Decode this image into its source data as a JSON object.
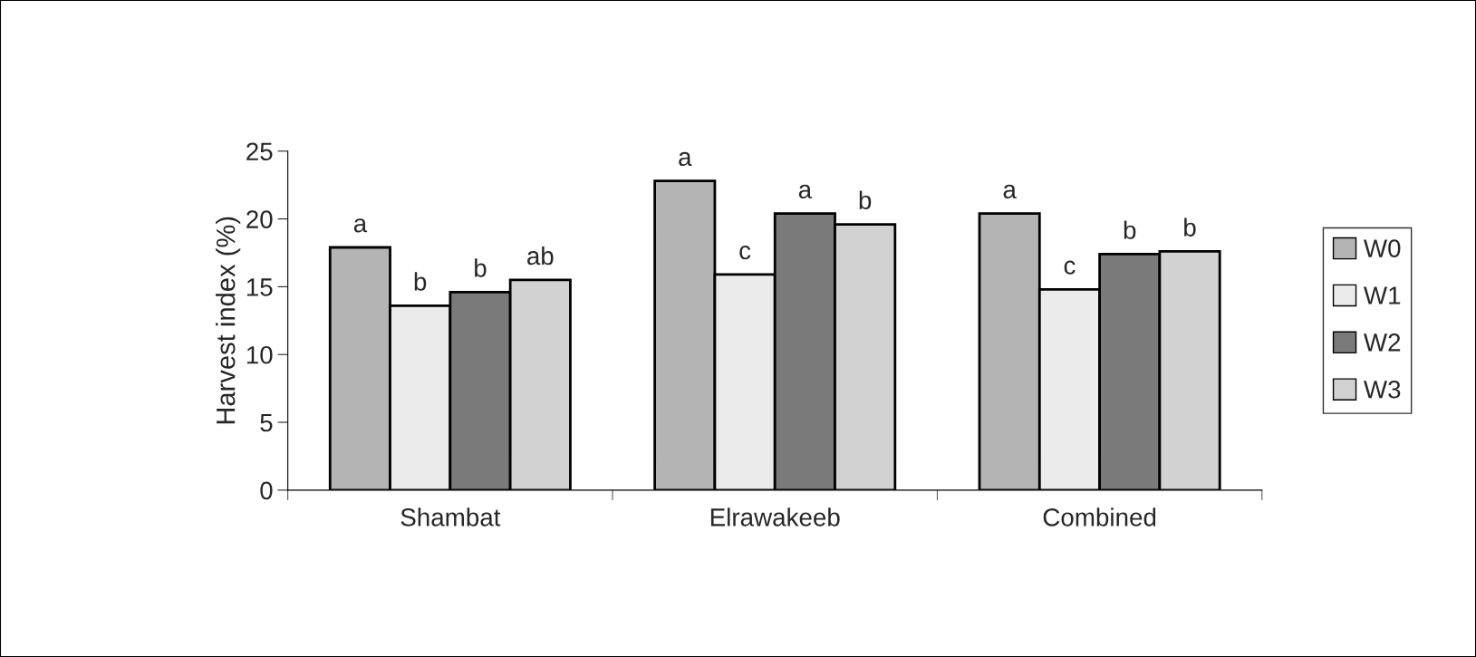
{
  "chart_data": {
    "type": "bar",
    "ylabel": "Harvest index (%)",
    "categories": [
      "Shambat",
      "Elrawakeeb",
      "Combined"
    ],
    "series": [
      {
        "name": "W0",
        "color": "#b4b4b4",
        "values": [
          17.9,
          22.8,
          20.4
        ],
        "value_labels": [
          "a",
          "a",
          "a"
        ]
      },
      {
        "name": "W1",
        "color": "#ebebeb",
        "values": [
          13.6,
          15.9,
          14.8
        ],
        "value_labels": [
          "b",
          "c",
          "c"
        ]
      },
      {
        "name": "W2",
        "color": "#7a7a7a",
        "values": [
          14.6,
          20.4,
          17.4
        ],
        "value_labels": [
          "b",
          "a",
          "b"
        ]
      },
      {
        "name": "W3",
        "color": "#d2d2d2",
        "values": [
          15.5,
          19.6,
          17.6
        ],
        "value_labels": [
          "ab",
          "b",
          "b"
        ]
      }
    ],
    "ylim": [
      0,
      25
    ],
    "yticks": [
      0,
      5,
      10,
      15,
      20,
      25
    ],
    "grid": false,
    "legend": "right"
  }
}
